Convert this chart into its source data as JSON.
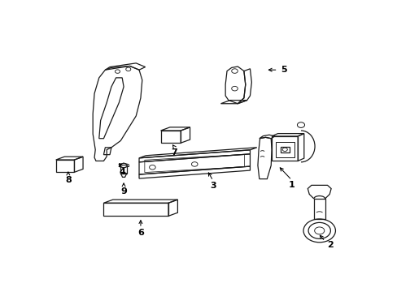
{
  "background_color": "#ffffff",
  "line_color": "#1a1a1a",
  "fig_width": 4.89,
  "fig_height": 3.6,
  "dpi": 100,
  "label_specs": [
    [
      1,
      0.785,
      0.335,
      0.785,
      0.355,
      0.74,
      0.42
    ],
    [
      2,
      0.91,
      0.068,
      0.893,
      0.082,
      0.87,
      0.12
    ],
    [
      3,
      0.53,
      0.33,
      0.53,
      0.352,
      0.51,
      0.4
    ],
    [
      4,
      0.235,
      0.39,
      0.235,
      0.412,
      0.22,
      0.44
    ],
    [
      5,
      0.76,
      0.845,
      0.74,
      0.845,
      0.7,
      0.845
    ],
    [
      6,
      0.295,
      0.12,
      0.295,
      0.142,
      0.295,
      0.19
    ],
    [
      7,
      0.405,
      0.478,
      0.405,
      0.5,
      0.393,
      0.522
    ],
    [
      8,
      0.06,
      0.355,
      0.06,
      0.375,
      0.06,
      0.405
    ],
    [
      9,
      0.24,
      0.305,
      0.24,
      0.325,
      0.24,
      0.355
    ]
  ]
}
